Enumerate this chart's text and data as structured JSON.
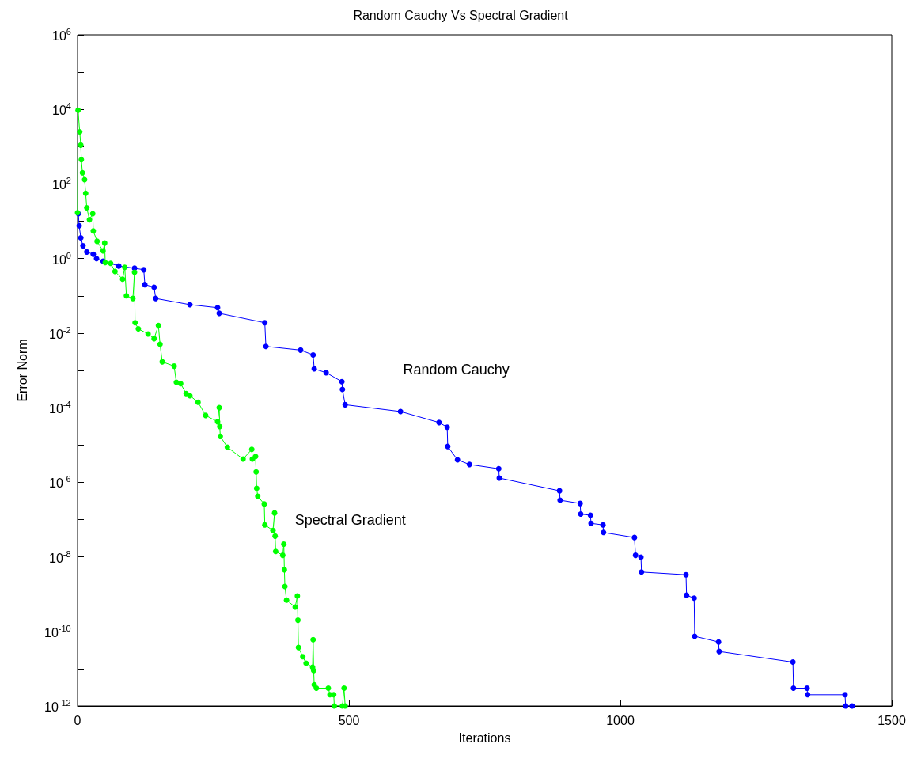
{
  "chart_data": {
    "type": "line",
    "title": "Random Cauchy Vs Spectral Gradient",
    "xlabel": "Iterations",
    "ylabel": "Error Norm",
    "log": "y",
    "marker": "circle",
    "line_style": "solid",
    "grid": false,
    "xlim": [
      0,
      1500
    ],
    "xticks": [
      0,
      500,
      1000,
      1500
    ],
    "ylim": [
      1e-12,
      1000000.0
    ],
    "yticks": [
      {
        "value": 1e-12,
        "label": "10$^{-12}$"
      },
      {
        "value": 1e-11,
        "label": null
      },
      {
        "value": 1e-10,
        "label": "10$^{-10}$"
      },
      {
        "value": 1e-09,
        "label": null
      },
      {
        "value": 1e-08,
        "label": "10$^{-8}$"
      },
      {
        "value": 1e-07,
        "label": null
      },
      {
        "value": 1e-06,
        "label": "10$^{-6}$"
      },
      {
        "value": 1e-05,
        "label": null
      },
      {
        "value": 0.0001,
        "label": "10$^{-4}$"
      },
      {
        "value": 0.001,
        "label": null
      },
      {
        "value": 0.01,
        "label": "10$^{-2}$"
      },
      {
        "value": 0.1,
        "label": null
      },
      {
        "value": 1,
        "label": "10$^{0}$"
      },
      {
        "value": 10,
        "label": null
      },
      {
        "value": 100,
        "label": "10$^{2}$"
      },
      {
        "value": 1000,
        "label": null
      },
      {
        "value": 10000,
        "label": "10$^{4}$"
      },
      {
        "value": 100000,
        "label": null
      },
      {
        "value": 1000000,
        "label": "10$^{6}$"
      }
    ],
    "series": [
      {
        "name": "Random Cauchy",
        "color": "#0000ff",
        "x": [
          1.5,
          3,
          6,
          10,
          17,
          29,
          35,
          47,
          76,
          105,
          122,
          124,
          141,
          144,
          207,
          258,
          261,
          345,
          347,
          411,
          434,
          436,
          458,
          487,
          488,
          493,
          595,
          666,
          681,
          682,
          700,
          722,
          776,
          777,
          888,
          889,
          926,
          927,
          945,
          946,
          968,
          969,
          1026,
          1028,
          1038,
          1039,
          1121,
          1122,
          1136,
          1137,
          1181,
          1182,
          1318,
          1319,
          1344,
          1345,
          1414,
          1415,
          1427
        ],
        "values": [
          16,
          7.6,
          3.6,
          2.2,
          1.5,
          1.3,
          1.0,
          0.85,
          0.63,
          0.55,
          0.5,
          0.2,
          0.17,
          0.085,
          0.058,
          0.048,
          0.034,
          0.019,
          0.0044,
          0.0035,
          0.0026,
          0.0011,
          0.00087,
          0.0005,
          0.00031,
          0.00012,
          7.9e-05,
          4e-05,
          3e-05,
          9.1e-06,
          4e-06,
          3e-06,
          2.3e-06,
          1.3e-06,
          5.9e-07,
          3.3e-07,
          2.7e-07,
          1.4e-07,
          1.3e-07,
          7.9e-08,
          7.2e-08,
          4.5e-08,
          3.3e-08,
          1.1e-08,
          9.8e-09,
          3.9e-09,
          3.3e-09,
          9.3e-10,
          7.8e-10,
          7.4e-11,
          5.2e-11,
          2.9e-11,
          1.5e-11,
          3e-12,
          3e-12,
          2e-12,
          2e-12,
          1e-12,
          1e-12
        ]
      },
      {
        "name": "Spectral Gradient",
        "color": "#00ff00",
        "x": [
          0,
          1,
          4,
          6,
          7,
          9,
          13,
          15,
          17,
          22,
          28,
          29,
          36,
          47,
          50,
          51,
          61,
          69,
          83,
          87,
          90,
          102,
          105,
          106,
          112,
          130,
          141,
          149,
          152,
          156,
          178,
          182,
          190,
          200,
          207,
          222,
          236,
          258,
          261,
          262,
          263,
          276,
          305,
          321,
          322,
          328,
          329,
          330,
          332,
          344,
          345,
          360,
          363,
          364,
          365,
          378,
          380,
          381,
          382,
          385,
          401,
          405,
          406,
          407,
          415,
          421,
          433,
          434,
          435,
          436,
          440,
          462,
          465,
          472,
          473,
          488,
          491,
          493
        ],
        "values": [
          17,
          9500.0,
          2500.0,
          1100.0,
          450,
          200,
          130,
          56,
          23,
          11,
          16,
          5.5,
          2.9,
          1.6,
          2.6,
          0.78,
          0.74,
          0.45,
          0.28,
          0.58,
          0.1,
          0.085,
          0.43,
          0.019,
          0.013,
          0.0095,
          0.0071,
          0.016,
          0.005,
          0.0017,
          0.0013,
          0.00048,
          0.00044,
          0.00024,
          0.00021,
          0.00014,
          6.2e-05,
          4.2e-05,
          0.0001,
          3.1e-05,
          1.7e-05,
          8.7e-06,
          4.2e-06,
          7.6e-06,
          4.2e-06,
          4.9e-06,
          1.9e-06,
          6.9e-07,
          4.2e-07,
          2.6e-07,
          7.2e-08,
          5.1e-08,
          1.5e-07,
          3.6e-08,
          1.4e-08,
          1.1e-08,
          2.2e-08,
          4.5e-09,
          1.6e-09,
          6.9e-10,
          4.5e-10,
          8.9e-10,
          2e-10,
          3.7e-11,
          2.1e-11,
          1.4e-11,
          1.1e-11,
          6e-11,
          8.9e-12,
          3.7e-12,
          3e-12,
          3e-12,
          2e-12,
          2e-12,
          1e-12,
          1e-12,
          3e-12,
          1e-12
        ]
      }
    ]
  }
}
